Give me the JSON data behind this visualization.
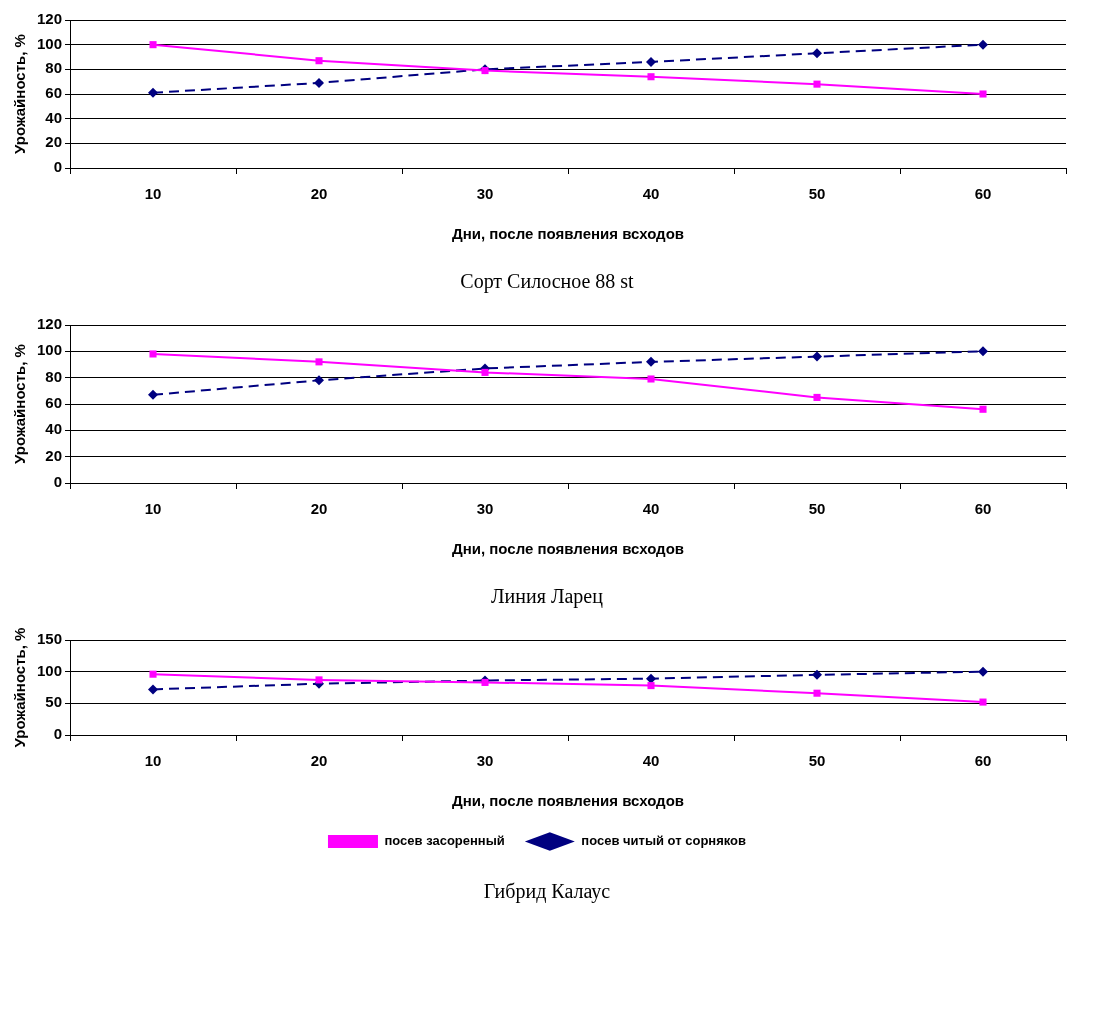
{
  "chart_data": [
    {
      "type": "line",
      "title": "Сорт Силосное 88 st",
      "xlabel": "Дни, после появления всходов",
      "ylabel": "Урожайность, %",
      "categories": [
        "10",
        "20",
        "30",
        "40",
        "50",
        "60"
      ],
      "ylim": [
        0,
        120
      ],
      "yticks": [
        0,
        20,
        40,
        60,
        80,
        100,
        120
      ],
      "grid": "y",
      "legend": false,
      "series": [
        {
          "color": "#000080",
          "marker": "diamond",
          "line_style": "dashed",
          "values": [
            61,
            69,
            80,
            86,
            93,
            100
          ]
        },
        {
          "color": "#ff00ff",
          "marker": "square",
          "line_style": "solid",
          "values": [
            100,
            87,
            79,
            74,
            68,
            60
          ]
        }
      ]
    },
    {
      "type": "line",
      "title": "Линия Ларец",
      "xlabel": "Дни, после появления всходов",
      "ylabel": "Урожайность, %",
      "categories": [
        "10",
        "20",
        "30",
        "40",
        "50",
        "60"
      ],
      "ylim": [
        0,
        120
      ],
      "yticks": [
        0,
        20,
        40,
        60,
        80,
        100,
        120
      ],
      "grid": "y",
      "legend": false,
      "series": [
        {
          "color": "#000080",
          "marker": "diamond",
          "line_style": "dashed",
          "values": [
            67,
            78,
            87,
            92,
            96,
            100
          ]
        },
        {
          "color": "#ff00ff",
          "marker": "square",
          "line_style": "solid",
          "values": [
            98,
            92,
            84,
            79,
            65,
            56
          ]
        }
      ]
    },
    {
      "type": "line",
      "title": "Гибрид Калаус",
      "xlabel": "Дни, после появления всходов",
      "ylabel": "Урожайность, %",
      "categories": [
        "10",
        "20",
        "30",
        "40",
        "50",
        "60"
      ],
      "ylim": [
        0,
        150
      ],
      "yticks": [
        0,
        50,
        100,
        150
      ],
      "grid": "y",
      "legend": "bottom",
      "series": [
        {
          "name": "посев читый от сорняков",
          "color": "#000080",
          "marker": "diamond",
          "line_style": "dashed",
          "values": [
            72,
            81,
            86,
            89,
            95,
            100
          ]
        },
        {
          "name": "посев засоренный",
          "color": "#ff00ff",
          "marker": "square",
          "line_style": "solid",
          "values": [
            96,
            87,
            83,
            78,
            66,
            52
          ]
        }
      ]
    }
  ]
}
